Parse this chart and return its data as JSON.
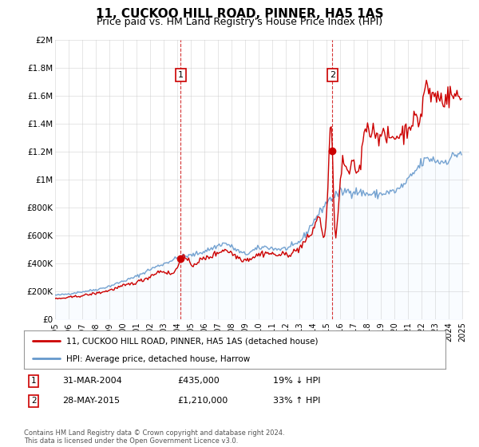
{
  "title": "11, CUCKOO HILL ROAD, PINNER, HA5 1AS",
  "subtitle": "Price paid vs. HM Land Registry's House Price Index (HPI)",
  "title_fontsize": 11,
  "subtitle_fontsize": 9,
  "legend_line1": "11, CUCKOO HILL ROAD, PINNER, HA5 1AS (detached house)",
  "legend_line2": "HPI: Average price, detached house, Harrow",
  "red_line_color": "#cc0000",
  "blue_line_color": "#6699cc",
  "fill_color": "#ddeeff",
  "vline_color": "#cc0000",
  "annotation_box_color": "#ffffff",
  "annotation_box_edge": "#cc0000",
  "grid_color": "#cccccc",
  "background_color": "#ffffff",
  "sale1_year": 2004.25,
  "sale1_label": "1",
  "sale1_price": 435000,
  "sale1_text": "31-MAR-2004",
  "sale1_pct": "19% ↓ HPI",
  "sale2_year": 2015.42,
  "sale2_label": "2",
  "sale2_price": 1210000,
  "sale2_text": "28-MAY-2015",
  "sale2_pct": "33% ↑ HPI",
  "xmin": 1995.0,
  "xmax": 2025.5,
  "ymin": 0,
  "ymax": 2000000,
  "yticks": [
    0,
    200000,
    400000,
    600000,
    800000,
    1000000,
    1200000,
    1400000,
    1600000,
    1800000,
    2000000
  ],
  "ytick_labels": [
    "£0",
    "£200K",
    "£400K",
    "£600K",
    "£800K",
    "£1M",
    "£1.2M",
    "£1.4M",
    "£1.6M",
    "£1.8M",
    "£2M"
  ],
  "xticks": [
    1995,
    1996,
    1997,
    1998,
    1999,
    2000,
    2001,
    2002,
    2003,
    2004,
    2005,
    2006,
    2007,
    2008,
    2009,
    2010,
    2011,
    2012,
    2013,
    2014,
    2015,
    2016,
    2017,
    2018,
    2019,
    2020,
    2021,
    2022,
    2023,
    2024,
    2025
  ],
  "footnote": "Contains HM Land Registry data © Crown copyright and database right 2024.\nThis data is licensed under the Open Government Licence v3.0."
}
